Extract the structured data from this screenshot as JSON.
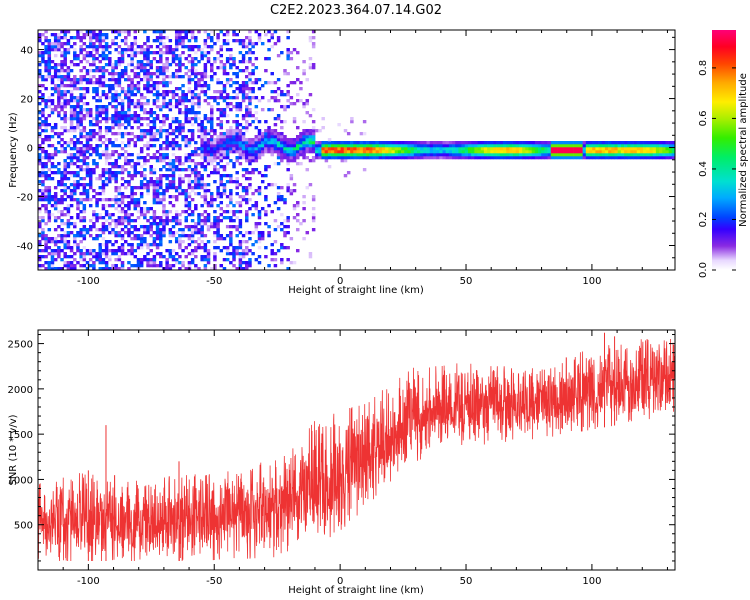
{
  "title": "C2E2.2023.364.07.14.G02",
  "chart_data": [
    {
      "type": "heatmap",
      "xlabel": "Height of straight line (km)",
      "ylabel": "Frequency (Hz)",
      "xlim": [
        -120,
        133
      ],
      "ylim": [
        -50,
        48
      ],
      "xticks": [
        -100,
        -50,
        0,
        50,
        100
      ],
      "yticks": [
        -40,
        -20,
        0,
        20,
        40
      ],
      "colorbar": {
        "label": "Normalized spectral amplitude",
        "range": [
          0.0,
          0.95
        ],
        "ticks": [
          0.0,
          0.2,
          0.4,
          0.6,
          0.8
        ],
        "colormap": "rainbow (white → violet → blue → cyan → green → yellow → orange → red → magenta)"
      },
      "features": [
        {
          "x_range": [
            -120,
            -20
          ],
          "freq_range": [
            -50,
            48
          ],
          "amplitude": "0.05–0.3",
          "desc": "broadband speckled noise"
        },
        {
          "x_range": [
            -50,
            -10
          ],
          "freq_range": [
            -5,
            7
          ],
          "amplitude": "0.2–0.45",
          "desc": "emerging signal near 0 Hz"
        },
        {
          "x_range": [
            -10,
            133
          ],
          "freq_center": -1,
          "freq_halfwidth": 4,
          "amplitude": "0.3–0.9",
          "desc": "strong narrow signal near 0 Hz"
        },
        {
          "x_range": [
            85,
            95
          ],
          "freq_center": -2,
          "amplitude": "0.85–0.95",
          "desc": "peak amplitude"
        }
      ]
    },
    {
      "type": "line",
      "xlabel": "Height of straight line (km)",
      "ylabel": "SNR (10 * v/v)",
      "xlim": [
        -120,
        133
      ],
      "ylim": [
        0,
        2650
      ],
      "xticks": [
        -100,
        -50,
        0,
        50,
        100
      ],
      "yticks": [
        500,
        1000,
        1500,
        2000,
        2500
      ],
      "color": "#ee3333",
      "envelope": {
        "x": [
          -120,
          -100,
          -80,
          -60,
          -40,
          -20,
          -10,
          0,
          10,
          20,
          30,
          40,
          50,
          60,
          80,
          100,
          120,
          133
        ],
        "low": [
          100,
          100,
          100,
          100,
          120,
          150,
          300,
          400,
          700,
          900,
          1200,
          1300,
          1350,
          1400,
          1450,
          1550,
          1650,
          1700
        ],
        "high": [
          950,
          1100,
          1000,
          1050,
          1100,
          1300,
          1650,
          1750,
          1850,
          2050,
          2250,
          2250,
          2300,
          2250,
          2250,
          2450,
          2550,
          2550
        ]
      },
      "spikes": [
        {
          "x": -93,
          "y": 1600
        },
        {
          "x": -100,
          "y": 1100
        },
        {
          "x": -64,
          "y": 1200
        },
        {
          "x": 105,
          "y": 2620
        },
        {
          "x": 109,
          "y": 2580
        }
      ]
    }
  ]
}
